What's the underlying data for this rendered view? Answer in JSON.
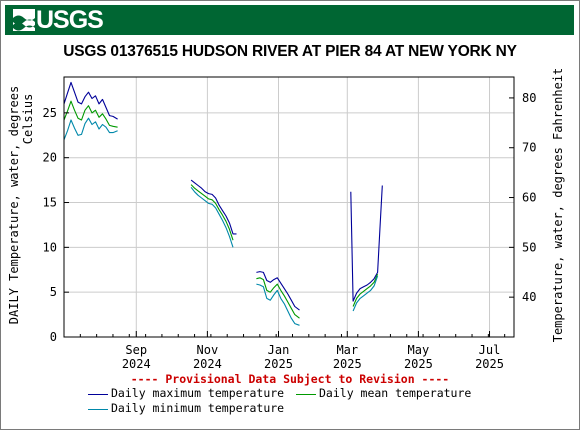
{
  "logo": {
    "text": "USGS"
  },
  "chart_data": {
    "type": "line",
    "title": "USGS 01376515 HUDSON RIVER AT PIER 84 AT NEW YORK NY",
    "ylabel_left": [
      "DAILY Temperature, water, degrees",
      "Celsius"
    ],
    "ylabel_right": "Temperature, water, degrees Fahrenheit",
    "ylim": [
      0,
      29
    ],
    "y2lim": [
      32,
      84.2
    ],
    "xlim": [
      "2024-07-01",
      "2025-07-22"
    ],
    "yticks": [
      0,
      5,
      10,
      15,
      20,
      25
    ],
    "y2ticks": [
      40,
      50,
      60,
      70,
      80
    ],
    "xticks": [
      {
        "date": "2024-09-01",
        "label": [
          "Sep",
          "2024"
        ]
      },
      {
        "date": "2024-11-01",
        "label": [
          "Nov",
          "2024"
        ]
      },
      {
        "date": "2025-01-01",
        "label": [
          "Jan",
          "2025"
        ]
      },
      {
        "date": "2025-03-01",
        "label": [
          "Mar",
          "2025"
        ]
      },
      {
        "date": "2025-05-01",
        "label": [
          "May",
          "2025"
        ]
      },
      {
        "date": "2025-07-01",
        "label": [
          "Jul",
          "2025"
        ]
      }
    ],
    "grid": true,
    "legend_position": "bottom",
    "provisional_note": "---- Provisional Data Subject to Revision ----",
    "series": [
      {
        "name": "Daily maximum temperature",
        "color": "#000099",
        "segments": [
          [
            [
              "2024-07-01",
              26
            ],
            [
              "2024-07-04",
              27.2
            ],
            [
              "2024-07-07",
              28.4
            ],
            [
              "2024-07-10",
              27.3
            ],
            [
              "2024-07-13",
              26.2
            ],
            [
              "2024-07-16",
              26.0
            ],
            [
              "2024-07-19",
              26.8
            ],
            [
              "2024-07-22",
              27.3
            ],
            [
              "2024-07-25",
              26.6
            ],
            [
              "2024-07-28",
              26.9
            ],
            [
              "2024-07-31",
              26.0
            ],
            [
              "2024-08-03",
              26.5
            ],
            [
              "2024-08-06",
              25.6
            ],
            [
              "2024-08-09",
              24.7
            ],
            [
              "2024-08-12",
              24.6
            ],
            [
              "2024-08-16",
              24.3
            ]
          ],
          [
            [
              "2024-10-18",
              17.5
            ],
            [
              "2024-10-21",
              17.2
            ],
            [
              "2024-10-24",
              16.9
            ],
            [
              "2024-10-27",
              16.6
            ],
            [
              "2024-10-30",
              16.2
            ],
            [
              "2024-11-02",
              16.0
            ],
            [
              "2024-11-05",
              15.9
            ],
            [
              "2024-11-08",
              15.5
            ],
            [
              "2024-11-11",
              14.7
            ],
            [
              "2024-11-14",
              14.1
            ],
            [
              "2024-11-17",
              13.5
            ],
            [
              "2024-11-20",
              12.7
            ],
            [
              "2024-11-23",
              11.5
            ],
            [
              "2024-11-26",
              11.5
            ]
          ],
          [
            [
              "2024-12-13",
              7.2
            ],
            [
              "2024-12-16",
              7.3
            ],
            [
              "2024-12-19",
              7.2
            ],
            [
              "2024-12-22",
              6.3
            ],
            [
              "2024-12-25",
              6.1
            ],
            [
              "2024-12-28",
              6.4
            ],
            [
              "2024-12-31",
              6.6
            ],
            [
              "2025-01-03",
              6.0
            ],
            [
              "2025-01-06",
              5.4
            ],
            [
              "2025-01-09",
              4.8
            ],
            [
              "2025-01-12",
              4.1
            ],
            [
              "2025-01-15",
              3.4
            ],
            [
              "2025-01-19",
              3.0
            ]
          ],
          [
            [
              "2025-03-04",
              16.2
            ],
            [
              "2025-03-06",
              4.0
            ],
            [
              "2025-03-09",
              4.9
            ],
            [
              "2025-03-12",
              5.4
            ],
            [
              "2025-03-15",
              5.6
            ],
            [
              "2025-03-18",
              5.8
            ],
            [
              "2025-03-21",
              6.1
            ],
            [
              "2025-03-24",
              6.5
            ],
            [
              "2025-03-27",
              7.2
            ],
            [
              "2025-03-29",
              12.0
            ],
            [
              "2025-03-31",
              16.9
            ]
          ]
        ]
      },
      {
        "name": "Daily mean temperature",
        "color": "#009900",
        "segments": [
          [
            [
              "2024-07-01",
              24.2
            ],
            [
              "2024-07-04",
              25.2
            ],
            [
              "2024-07-07",
              26.3
            ],
            [
              "2024-07-10",
              25.3
            ],
            [
              "2024-07-13",
              24.4
            ],
            [
              "2024-07-16",
              24.2
            ],
            [
              "2024-07-19",
              25.3
            ],
            [
              "2024-07-22",
              25.8
            ],
            [
              "2024-07-25",
              25.0
            ],
            [
              "2024-07-28",
              25.3
            ],
            [
              "2024-07-31",
              24.5
            ],
            [
              "2024-08-03",
              24.9
            ],
            [
              "2024-08-06",
              24.3
            ],
            [
              "2024-08-09",
              23.6
            ],
            [
              "2024-08-12",
              23.5
            ],
            [
              "2024-08-16",
              23.4
            ]
          ],
          [
            [
              "2024-10-18",
              17.0
            ],
            [
              "2024-10-21",
              16.6
            ],
            [
              "2024-10-24",
              16.3
            ],
            [
              "2024-10-27",
              16.0
            ],
            [
              "2024-10-30",
              15.7
            ],
            [
              "2024-11-02",
              15.4
            ],
            [
              "2024-11-05",
              15.3
            ],
            [
              "2024-11-08",
              14.9
            ],
            [
              "2024-11-11",
              14.2
            ],
            [
              "2024-11-14",
              13.6
            ],
            [
              "2024-11-17",
              12.9
            ],
            [
              "2024-11-20",
              12.0
            ],
            [
              "2024-11-23",
              10.8
            ]
          ],
          [
            [
              "2024-12-13",
              6.5
            ],
            [
              "2024-12-16",
              6.6
            ],
            [
              "2024-12-19",
              6.4
            ],
            [
              "2024-12-22",
              5.2
            ],
            [
              "2024-12-25",
              5.0
            ],
            [
              "2024-12-28",
              5.5
            ],
            [
              "2024-12-31",
              5.9
            ],
            [
              "2025-01-03",
              5.2
            ],
            [
              "2025-01-06",
              4.6
            ],
            [
              "2025-01-09",
              3.9
            ],
            [
              "2025-01-12",
              3.2
            ],
            [
              "2025-01-15",
              2.5
            ],
            [
              "2025-01-19",
              2.1
            ]
          ],
          [
            [
              "2025-03-06",
              3.4
            ],
            [
              "2025-03-09",
              4.3
            ],
            [
              "2025-03-12",
              4.8
            ],
            [
              "2025-03-15",
              5.1
            ],
            [
              "2025-03-18",
              5.4
            ],
            [
              "2025-03-21",
              5.7
            ],
            [
              "2025-03-24",
              6.1
            ],
            [
              "2025-03-27",
              7.0
            ]
          ]
        ]
      },
      {
        "name": "Daily minimum temperature",
        "color": "#0088aa",
        "segments": [
          [
            [
              "2024-07-01",
              22.0
            ],
            [
              "2024-07-04",
              23.0
            ],
            [
              "2024-07-07",
              24.2
            ],
            [
              "2024-07-10",
              23.3
            ],
            [
              "2024-07-13",
              22.5
            ],
            [
              "2024-07-16",
              22.6
            ],
            [
              "2024-07-19",
              23.8
            ],
            [
              "2024-07-22",
              24.4
            ],
            [
              "2024-07-25",
              23.7
            ],
            [
              "2024-07-28",
              24.0
            ],
            [
              "2024-07-31",
              23.2
            ],
            [
              "2024-08-03",
              23.7
            ],
            [
              "2024-08-06",
              23.4
            ],
            [
              "2024-08-09",
              22.8
            ],
            [
              "2024-08-12",
              22.8
            ],
            [
              "2024-08-16",
              23.0
            ]
          ],
          [
            [
              "2024-10-18",
              16.7
            ],
            [
              "2024-10-21",
              16.2
            ],
            [
              "2024-10-24",
              15.8
            ],
            [
              "2024-10-27",
              15.5
            ],
            [
              "2024-10-30",
              15.2
            ],
            [
              "2024-11-02",
              14.9
            ],
            [
              "2024-11-05",
              14.8
            ],
            [
              "2024-11-08",
              14.4
            ],
            [
              "2024-11-11",
              13.7
            ],
            [
              "2024-11-14",
              13.0
            ],
            [
              "2024-11-17",
              12.2
            ],
            [
              "2024-11-20",
              11.2
            ],
            [
              "2024-11-23",
              10.0
            ]
          ],
          [
            [
              "2024-12-13",
              5.9
            ],
            [
              "2024-12-16",
              5.8
            ],
            [
              "2024-12-19",
              5.6
            ],
            [
              "2024-12-22",
              4.3
            ],
            [
              "2024-12-25",
              4.1
            ],
            [
              "2024-12-28",
              4.7
            ],
            [
              "2024-12-31",
              5.2
            ],
            [
              "2025-01-03",
              4.3
            ],
            [
              "2025-01-06",
              3.7
            ],
            [
              "2025-01-09",
              2.9
            ],
            [
              "2025-01-12",
              2.1
            ],
            [
              "2025-01-15",
              1.5
            ],
            [
              "2025-01-19",
              1.3
            ]
          ],
          [
            [
              "2025-03-06",
              2.9
            ],
            [
              "2025-03-09",
              3.8
            ],
            [
              "2025-03-12",
              4.3
            ],
            [
              "2025-03-15",
              4.6
            ],
            [
              "2025-03-18",
              4.9
            ],
            [
              "2025-03-21",
              5.2
            ],
            [
              "2025-03-24",
              5.7
            ],
            [
              "2025-03-27",
              6.8
            ]
          ]
        ]
      }
    ]
  }
}
